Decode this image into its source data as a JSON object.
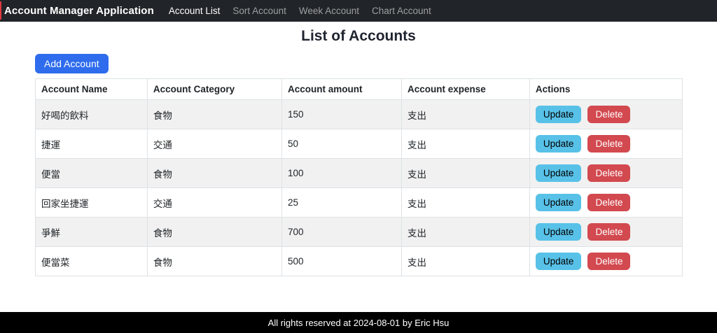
{
  "navbar": {
    "brand": "Account Manager Application",
    "items": [
      {
        "label": "Account List",
        "active": true
      },
      {
        "label": "Sort Account",
        "active": false
      },
      {
        "label": "Week Account",
        "active": false
      },
      {
        "label": "Chart Account",
        "active": false
      }
    ]
  },
  "page": {
    "title": "List of Accounts",
    "add_button_label": "Add Account"
  },
  "table": {
    "headers": [
      "Account Name",
      "Account Category",
      "Account amount",
      "Account expense",
      "Actions"
    ],
    "rows": [
      {
        "name": "好喝的飲料",
        "category": "食物",
        "amount": "150",
        "expense": "支出"
      },
      {
        "name": "捷運",
        "category": "交通",
        "amount": "50",
        "expense": "支出"
      },
      {
        "name": "便當",
        "category": "食物",
        "amount": "100",
        "expense": "支出"
      },
      {
        "name": "回家坐捷運",
        "category": "交通",
        "amount": "25",
        "expense": "支出"
      },
      {
        "name": "爭鮮",
        "category": "食物",
        "amount": "700",
        "expense": "支出"
      },
      {
        "name": "便當菜",
        "category": "食物",
        "amount": "500",
        "expense": "支出"
      }
    ],
    "action_labels": {
      "update": "Update",
      "delete": "Delete"
    }
  },
  "footer": {
    "text": "All rights reserved at 2024-08-01 by Eric Hsu"
  },
  "colors": {
    "primary": "#2e6ced",
    "info": "#58c1e8",
    "danger": "#d2494f",
    "navbar_bg": "#212529",
    "footer_bg": "#000000",
    "stripe": "#f1f1f1"
  }
}
